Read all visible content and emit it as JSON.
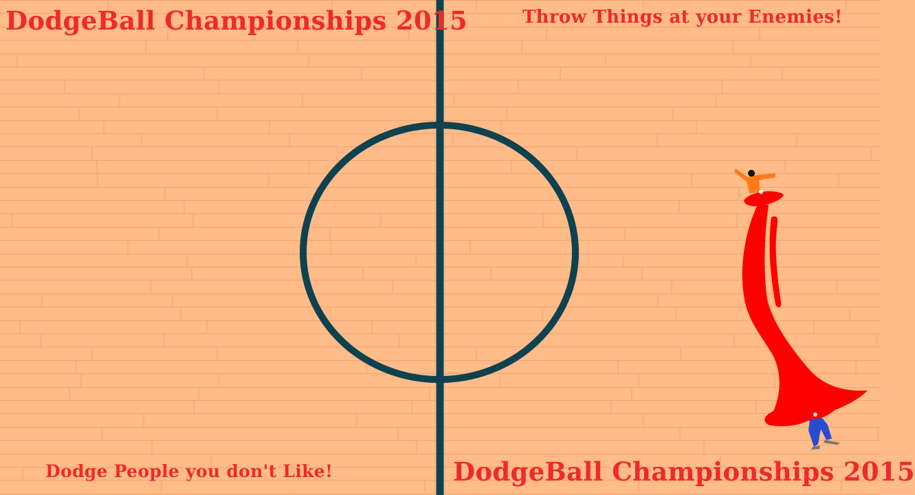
{
  "game": {
    "title_top": "DodgeBall Championships 2015",
    "tagline_top": "Throw Things at your Enemies!",
    "tagline_bottom": "Dodge People you don't Like!",
    "title_bottom": "DodgeBall Championships 2015"
  },
  "colors": {
    "floor": "#ffbb88",
    "board_line": "#f3a56c",
    "court_line": "#0e4250",
    "text": "#ef2a2a",
    "splash": "#ff0000",
    "player_top_shirt": "#ff7a1a",
    "player_bottom_pants": "#2a4bd0"
  }
}
